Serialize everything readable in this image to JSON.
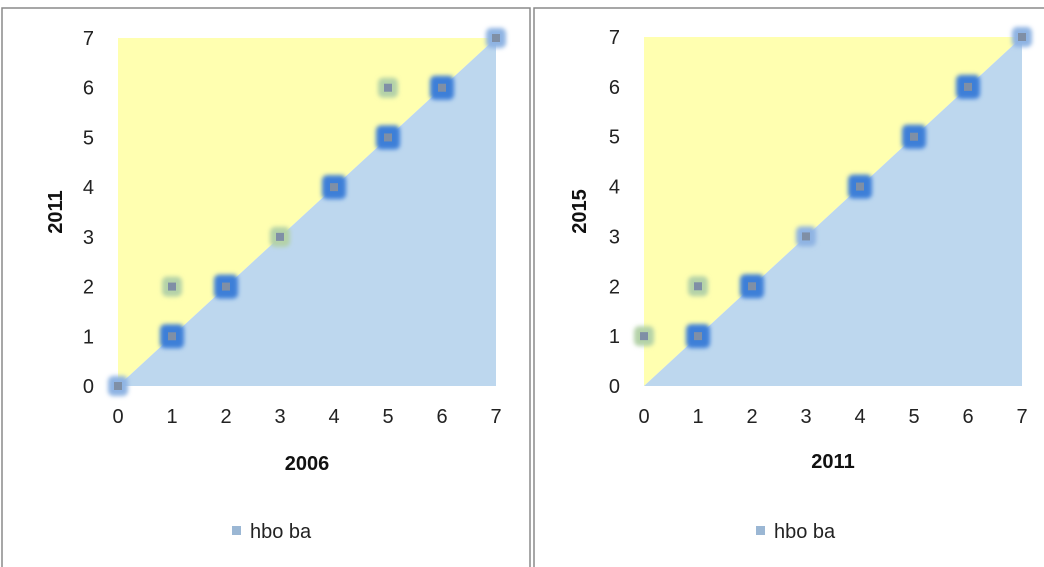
{
  "colors": {
    "upper_region": "#ffffb0",
    "lower_region": "#bdd7ee",
    "point_halo_strong": "#3c7fd8",
    "point_halo_light": "#8fb4e3",
    "point_halo_green": "#b4d2a8",
    "point_core": "#7f8fa6",
    "legend_marker": "#9bb7d4"
  },
  "chart_data": [
    {
      "type": "scatter",
      "xlabel": "2006",
      "ylabel": "2011",
      "xlim": [
        0,
        7
      ],
      "ylim": [
        0,
        7
      ],
      "x_ticks": [
        "0",
        "1",
        "2",
        "3",
        "4",
        "5",
        "6",
        "7"
      ],
      "y_ticks": [
        "0",
        "1",
        "2",
        "3",
        "4",
        "5",
        "6",
        "7"
      ],
      "legend": {
        "position": "bottom",
        "label": "hbo ba"
      },
      "series": [
        {
          "name": "hbo ba",
          "points": [
            {
              "x": 0,
              "y": 0,
              "halo": "light"
            },
            {
              "x": 1,
              "y": 1,
              "halo": "strong"
            },
            {
              "x": 1,
              "y": 2,
              "halo": "green"
            },
            {
              "x": 2,
              "y": 2,
              "halo": "strong"
            },
            {
              "x": 3,
              "y": 3,
              "halo": "green"
            },
            {
              "x": 4,
              "y": 4,
              "halo": "strong"
            },
            {
              "x": 5,
              "y": 5,
              "halo": "strong"
            },
            {
              "x": 5,
              "y": 6,
              "halo": "green"
            },
            {
              "x": 6,
              "y": 6,
              "halo": "strong"
            },
            {
              "x": 7,
              "y": 7,
              "halo": "light"
            }
          ]
        }
      ]
    },
    {
      "type": "scatter",
      "xlabel": "2011",
      "ylabel": "2015",
      "xlim": [
        0,
        7
      ],
      "ylim": [
        0,
        7
      ],
      "x_ticks": [
        "0",
        "1",
        "2",
        "3",
        "4",
        "5",
        "6",
        "7"
      ],
      "y_ticks": [
        "0",
        "1",
        "2",
        "3",
        "4",
        "5",
        "6",
        "7"
      ],
      "legend": {
        "position": "bottom",
        "label": "hbo ba"
      },
      "series": [
        {
          "name": "hbo ba",
          "points": [
            {
              "x": 0,
              "y": 1,
              "halo": "green"
            },
            {
              "x": 1,
              "y": 1,
              "halo": "strong"
            },
            {
              "x": 1,
              "y": 2,
              "halo": "green"
            },
            {
              "x": 2,
              "y": 2,
              "halo": "strong"
            },
            {
              "x": 3,
              "y": 3,
              "halo": "light"
            },
            {
              "x": 4,
              "y": 4,
              "halo": "strong"
            },
            {
              "x": 5,
              "y": 5,
              "halo": "strong"
            },
            {
              "x": 6,
              "y": 6,
              "halo": "strong"
            },
            {
              "x": 7,
              "y": 7,
              "halo": "light"
            }
          ]
        }
      ]
    }
  ]
}
